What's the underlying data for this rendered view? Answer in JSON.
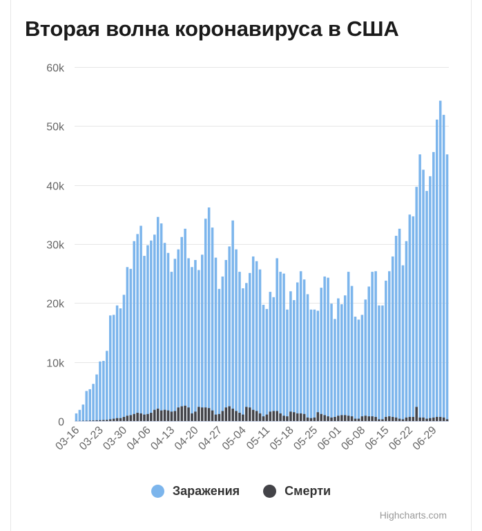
{
  "title": "Вторая волна коронавируса в США",
  "credits": "Highcharts.com",
  "chart_data": {
    "type": "bar",
    "title": "Вторая волна коронавируса в США",
    "xlabel": "",
    "ylabel": "",
    "ylim": [
      0,
      60000
    ],
    "y_ticks": [
      0,
      10000,
      20000,
      30000,
      40000,
      50000,
      60000
    ],
    "y_tick_labels": [
      "0",
      "10k",
      "20k",
      "30k",
      "40k",
      "50k",
      "60k"
    ],
    "x_tick_labels": [
      "03-16",
      "03-23",
      "03-30",
      "04-06",
      "04-13",
      "04-20",
      "04-27",
      "05-04",
      "05-11",
      "05-18",
      "05-25",
      "06-01",
      "06-08",
      "06-15",
      "06-22",
      "06-29"
    ],
    "grid": true,
    "legend_position": "bottom-center",
    "categories": [
      "03-16",
      "03-17",
      "03-18",
      "03-19",
      "03-20",
      "03-21",
      "03-22",
      "03-23",
      "03-24",
      "03-25",
      "03-26",
      "03-27",
      "03-28",
      "03-29",
      "03-30",
      "03-31",
      "04-01",
      "04-02",
      "04-03",
      "04-04",
      "04-05",
      "04-06",
      "04-07",
      "04-08",
      "04-09",
      "04-10",
      "04-11",
      "04-12",
      "04-13",
      "04-14",
      "04-15",
      "04-16",
      "04-17",
      "04-18",
      "04-19",
      "04-20",
      "04-21",
      "04-22",
      "04-23",
      "04-24",
      "04-25",
      "04-26",
      "04-27",
      "04-28",
      "04-29",
      "04-30",
      "05-01",
      "05-02",
      "05-03",
      "05-04",
      "05-05",
      "05-06",
      "05-07",
      "05-08",
      "05-09",
      "05-10",
      "05-11",
      "05-12",
      "05-13",
      "05-14",
      "05-15",
      "05-16",
      "05-17",
      "05-18",
      "05-19",
      "05-20",
      "05-21",
      "05-22",
      "05-23",
      "05-24",
      "05-25",
      "05-26",
      "05-27",
      "05-28",
      "05-29",
      "05-30",
      "05-31",
      "06-01",
      "06-02",
      "06-03",
      "06-04",
      "06-05",
      "06-06",
      "06-07",
      "06-08",
      "06-09",
      "06-10",
      "06-11",
      "06-12",
      "06-13",
      "06-14",
      "06-15",
      "06-16",
      "06-17",
      "06-18",
      "06-19",
      "06-20",
      "06-21",
      "06-22",
      "06-23",
      "06-24",
      "06-25",
      "06-26",
      "06-27",
      "06-28",
      "06-29",
      "06-30",
      "07-01",
      "07-02",
      "07-03"
    ],
    "series": [
      {
        "name": "Заражения",
        "color": "#7cb5ec",
        "values": [
          1300,
          1900,
          2800,
          5100,
          5400,
          6300,
          7900,
          10100,
          10200,
          11900,
          17900,
          18000,
          19600,
          19100,
          21400,
          26100,
          25800,
          30500,
          31700,
          33100,
          28000,
          29800,
          30600,
          31600,
          34600,
          33500,
          30200,
          28500,
          25300,
          27500,
          29100,
          31200,
          32600,
          27600,
          26100,
          27300,
          25600,
          28200,
          34300,
          36200,
          32800,
          27700,
          22400,
          24500,
          27300,
          29600,
          34000,
          29100,
          25300,
          22500,
          23400,
          25100,
          27900,
          27100,
          25700,
          19700,
          19000,
          21900,
          21000,
          27600,
          25300,
          25000,
          18900,
          22000,
          20500,
          23500,
          25400,
          24000,
          21500,
          18900,
          18900,
          18700,
          22600,
          24500,
          24300,
          19900,
          17300,
          20800,
          19800,
          21300,
          25300,
          22900,
          17700,
          17200,
          18000,
          20600,
          22800,
          25300,
          25400,
          19600,
          19600,
          23800,
          25400,
          27900,
          31400,
          32600,
          26400,
          30500,
          35000,
          34700,
          39700,
          45200,
          42600,
          39000,
          41500,
          45600,
          51100,
          54300,
          51900,
          45200
        ]
      },
      {
        "name": "Смерти",
        "color": "#434348",
        "values": [
          20,
          30,
          50,
          60,
          80,
          100,
          130,
          150,
          180,
          200,
          300,
          400,
          500,
          500,
          700,
          900,
          1000,
          1200,
          1400,
          1300,
          1100,
          1200,
          1400,
          1900,
          2100,
          1800,
          1900,
          1800,
          1600,
          1700,
          2300,
          2500,
          2600,
          2300,
          1300,
          1600,
          2400,
          2300,
          2300,
          2200,
          1800,
          1100,
          1200,
          1700,
          2300,
          2500,
          2100,
          1700,
          1400,
          1100,
          2400,
          2300,
          1900,
          1700,
          1300,
          800,
          1100,
          1600,
          1700,
          1700,
          1300,
          900,
          800,
          1600,
          1500,
          1300,
          1300,
          1200,
          600,
          500,
          600,
          1500,
          1200,
          1000,
          800,
          600,
          700,
          900,
          1000,
          1000,
          900,
          800,
          400,
          400,
          800,
          900,
          800,
          800,
          700,
          300,
          300,
          700,
          800,
          700,
          600,
          400,
          300,
          600,
          700,
          700,
          2400,
          600,
          600,
          400,
          500,
          600,
          700,
          700,
          600,
          300
        ]
      }
    ]
  }
}
